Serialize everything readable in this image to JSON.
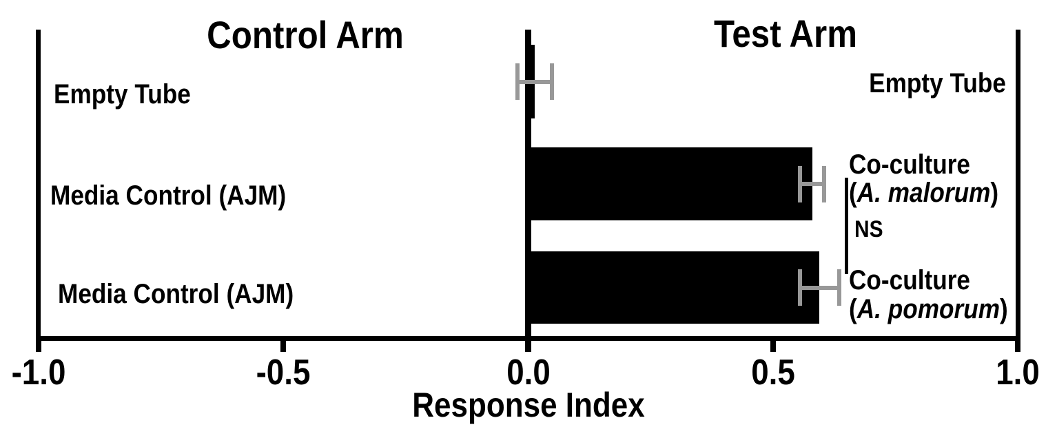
{
  "titles": {
    "control_arm": "Control Arm",
    "test_arm": "Test Arm"
  },
  "colors": {
    "bar": "#000000",
    "error_bar": "#989898",
    "axis": "#000000",
    "background": "#ffffff"
  },
  "right_labels": {
    "empty_tube": "Empty Tube",
    "coculture_1": {
      "line1": "Co-culture",
      "open": "(",
      "species": "A. malorum",
      "close": ")"
    },
    "coculture_2": {
      "line1": "Co-culture",
      "open": "(",
      "species": "A. pomorum",
      "close": ")"
    }
  },
  "chart_data": {
    "type": "bar",
    "orientation": "horizontal",
    "xlabel": "Response Index",
    "xlim": [
      -1.0,
      1.0
    ],
    "x_ticks": [
      -1.0,
      -0.5,
      0.0,
      0.5,
      1.0
    ],
    "x_tick_labels": [
      "-1.0",
      "-0.5",
      "0.0",
      "0.5",
      "1.0"
    ],
    "grid": false,
    "legend": false,
    "column_headers": {
      "left": "Control Arm",
      "right": "Test Arm"
    },
    "rows": [
      {
        "control_label": "Empty Tube",
        "test_label": "Empty Tube",
        "value": 0.013,
        "error": 0.035
      },
      {
        "control_label": "Media Control (AJM)",
        "test_label": "Co-culture (A. malorum)",
        "value": 0.58,
        "error": 0.025
      },
      {
        "control_label": "Media Control (AJM)",
        "test_label": "Co-culture (A. pomorum)",
        "value": 0.595,
        "error": 0.04
      }
    ],
    "significance": {
      "label": "NS",
      "between": [
        "Co-culture (A. malorum)",
        "Co-culture (A. pomorum)"
      ]
    }
  }
}
